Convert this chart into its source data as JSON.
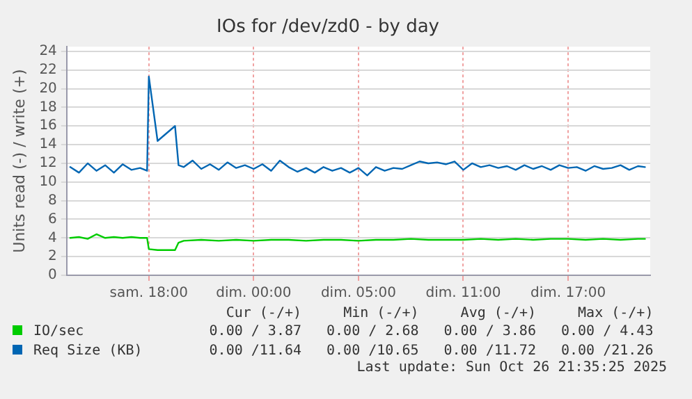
{
  "chart_data": {
    "type": "line",
    "title": "IOs for /dev/zd0 - by day",
    "ylabel": "Units read (-) / write (+)",
    "xlim": [
      "2025-10-25T11:18",
      "2025-10-26T20:42"
    ],
    "ylim": [
      0,
      24.5
    ],
    "xticks": [
      {
        "value": "2025-10-25T16:00",
        "label": "sam. 18:00"
      },
      {
        "value": "2025-10-25T22:00",
        "label": "dim. 00:00"
      },
      {
        "value": "2025-10-26T04:00",
        "label": "dim. 05:00"
      },
      {
        "value": "2025-10-26T10:00",
        "label": "dim. 11:00"
      },
      {
        "value": "2025-10-26T16:00",
        "label": "dim. 17:00"
      }
    ],
    "yticks": [
      0,
      2,
      4,
      6,
      8,
      10,
      12,
      14,
      16,
      18,
      20,
      22,
      24
    ],
    "grid": true,
    "legend": "bottom",
    "marker": "none",
    "line_style": "solid",
    "series": [
      {
        "name": "IO/sec",
        "color": "#00cc00",
        "x": [
          "2025-10-25T11:30",
          "2025-10-25T12:00",
          "2025-10-25T12:30",
          "2025-10-25T13:00",
          "2025-10-25T13:30",
          "2025-10-25T14:00",
          "2025-10-25T14:30",
          "2025-10-25T15:00",
          "2025-10-25T15:30",
          "2025-10-25T15:54",
          "2025-10-25T16:00",
          "2025-10-25T16:30",
          "2025-10-25T17:00",
          "2025-10-25T17:30",
          "2025-10-25T17:42",
          "2025-10-25T18:00",
          "2025-10-25T19:00",
          "2025-10-25T20:00",
          "2025-10-25T21:00",
          "2025-10-25T22:00",
          "2025-10-25T23:00",
          "2025-10-26T00:00",
          "2025-10-26T01:00",
          "2025-10-26T02:00",
          "2025-10-26T03:00",
          "2025-10-26T04:00",
          "2025-10-26T05:00",
          "2025-10-26T06:00",
          "2025-10-26T07:00",
          "2025-10-26T08:00",
          "2025-10-26T09:00",
          "2025-10-26T10:00",
          "2025-10-26T11:00",
          "2025-10-26T12:00",
          "2025-10-26T13:00",
          "2025-10-26T14:00",
          "2025-10-26T15:00",
          "2025-10-26T16:00",
          "2025-10-26T17:00",
          "2025-10-26T18:00",
          "2025-10-26T19:00",
          "2025-10-26T20:00",
          "2025-10-26T20:24"
        ],
        "values": [
          4.0,
          4.1,
          3.9,
          4.4,
          4.0,
          4.1,
          4.0,
          4.1,
          4.0,
          4.0,
          2.8,
          2.7,
          2.7,
          2.7,
          3.5,
          3.7,
          3.8,
          3.7,
          3.8,
          3.7,
          3.8,
          3.8,
          3.7,
          3.8,
          3.8,
          3.7,
          3.8,
          3.8,
          3.9,
          3.8,
          3.8,
          3.8,
          3.9,
          3.8,
          3.9,
          3.8,
          3.9,
          3.9,
          3.8,
          3.9,
          3.8,
          3.9,
          3.9
        ]
      },
      {
        "name": "Req Size (KB)",
        "color": "#0066b3",
        "x": [
          "2025-10-25T11:30",
          "2025-10-25T12:00",
          "2025-10-25T12:30",
          "2025-10-25T13:00",
          "2025-10-25T13:30",
          "2025-10-25T14:00",
          "2025-10-25T14:30",
          "2025-10-25T15:00",
          "2025-10-25T15:30",
          "2025-10-25T15:54",
          "2025-10-25T16:00",
          "2025-10-25T16:30",
          "2025-10-25T17:00",
          "2025-10-25T17:30",
          "2025-10-25T17:42",
          "2025-10-25T18:00",
          "2025-10-25T18:30",
          "2025-10-25T19:00",
          "2025-10-25T19:30",
          "2025-10-25T20:00",
          "2025-10-25T20:30",
          "2025-10-25T21:00",
          "2025-10-25T21:30",
          "2025-10-25T22:00",
          "2025-10-25T22:30",
          "2025-10-25T23:00",
          "2025-10-25T23:30",
          "2025-10-26T00:00",
          "2025-10-26T00:30",
          "2025-10-26T01:00",
          "2025-10-26T01:30",
          "2025-10-26T02:00",
          "2025-10-26T02:30",
          "2025-10-26T03:00",
          "2025-10-26T03:30",
          "2025-10-26T04:00",
          "2025-10-26T04:30",
          "2025-10-26T05:00",
          "2025-10-26T05:30",
          "2025-10-26T06:00",
          "2025-10-26T06:30",
          "2025-10-26T07:00",
          "2025-10-26T07:30",
          "2025-10-26T08:00",
          "2025-10-26T08:30",
          "2025-10-26T09:00",
          "2025-10-26T09:30",
          "2025-10-26T10:00",
          "2025-10-26T10:30",
          "2025-10-26T11:00",
          "2025-10-26T11:30",
          "2025-10-26T12:00",
          "2025-10-26T12:30",
          "2025-10-26T13:00",
          "2025-10-26T13:30",
          "2025-10-26T14:00",
          "2025-10-26T14:30",
          "2025-10-26T15:00",
          "2025-10-26T15:30",
          "2025-10-26T16:00",
          "2025-10-26T16:30",
          "2025-10-26T17:00",
          "2025-10-26T17:30",
          "2025-10-26T18:00",
          "2025-10-26T18:30",
          "2025-10-26T19:00",
          "2025-10-26T19:30",
          "2025-10-26T20:00",
          "2025-10-26T20:24"
        ],
        "values": [
          11.6,
          11.0,
          12.0,
          11.2,
          11.8,
          11.0,
          11.9,
          11.3,
          11.5,
          11.2,
          21.3,
          14.4,
          15.2,
          16.0,
          11.8,
          11.6,
          12.3,
          11.4,
          11.9,
          11.3,
          12.1,
          11.5,
          11.8,
          11.4,
          11.9,
          11.2,
          12.3,
          11.6,
          11.1,
          11.5,
          11.0,
          11.6,
          11.2,
          11.5,
          11.0,
          11.5,
          10.7,
          11.6,
          11.2,
          11.5,
          11.4,
          11.8,
          12.2,
          12.0,
          12.1,
          11.9,
          12.2,
          11.3,
          12.0,
          11.6,
          11.8,
          11.5,
          11.7,
          11.3,
          11.8,
          11.4,
          11.7,
          11.3,
          11.8,
          11.5,
          11.6,
          11.2,
          11.7,
          11.4,
          11.5,
          11.8,
          11.3,
          11.7,
          11.6
        ]
      }
    ],
    "annotations": [
      "Cur (-/+)",
      "Min (-/+)",
      "Avg (-/+)",
      "Max (-/+)",
      "0.00 / 3.87",
      "0.00 / 2.68",
      "0.00 / 3.86",
      "0.00 / 4.43",
      "0.00 /11.64",
      "0.00 /10.65",
      "0.00 /11.72",
      "0.00 /21.26",
      "Last update: Sun Oct 26 21:35:25 2025"
    ]
  }
}
